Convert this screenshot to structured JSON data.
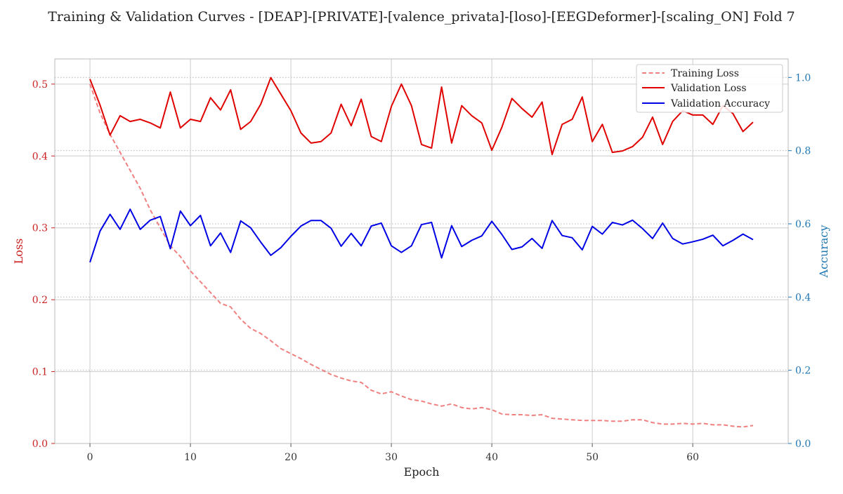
{
  "chart_data": {
    "type": "line",
    "title": "Training & Validation Curves - [DEAP]-[PRIVATE]-[valence_privata]-[loso]-[EEGDeformer]-[scaling_ON] Fold 7",
    "xlabel": "Epoch",
    "ylabel_left": "Loss",
    "ylabel_right": "Accuracy",
    "xlim": [
      -3.5,
      69.5
    ],
    "ylim_left": [
      0,
      0.535
    ],
    "ylim_right": [
      0,
      1.0505
    ],
    "xticks": [
      0,
      10,
      20,
      30,
      40,
      50,
      60
    ],
    "yticks_left": [
      0.0,
      0.1,
      0.2,
      0.3,
      0.4,
      0.5
    ],
    "yticks_right": [
      0.0,
      0.2,
      0.4,
      0.6,
      0.8,
      1.0
    ],
    "grid": true,
    "legend_position": "top-right",
    "colors": {
      "training_loss": "#f08080",
      "validation_loss": "#e00000",
      "validation_accuracy": "#0000e6",
      "left_axis": "#cc2222",
      "right_axis": "#1f77b4",
      "grid": "#cccccc"
    },
    "series": [
      {
        "name": "Training Loss",
        "axis": "left",
        "style": "dashed",
        "x": [
          0,
          1,
          2,
          3,
          4,
          5,
          6,
          7,
          8,
          9,
          10,
          11,
          12,
          13,
          14,
          15,
          16,
          17,
          18,
          19,
          20,
          21,
          22,
          23,
          24,
          25,
          26,
          27,
          28,
          29,
          30,
          31,
          32,
          33,
          34,
          35,
          36,
          37,
          38,
          39,
          40,
          41,
          42,
          43,
          44,
          45,
          46,
          47,
          48,
          49,
          50,
          51,
          52,
          53,
          54,
          55,
          56,
          57,
          58,
          59,
          60,
          61,
          62,
          63,
          64,
          65,
          66
        ],
        "values": [
          0.5,
          0.46,
          0.43,
          0.405,
          0.38,
          0.355,
          0.325,
          0.3,
          0.275,
          0.26,
          0.24,
          0.225,
          0.21,
          0.195,
          0.19,
          0.173,
          0.16,
          0.153,
          0.143,
          0.132,
          0.125,
          0.118,
          0.11,
          0.103,
          0.096,
          0.091,
          0.087,
          0.085,
          0.074,
          0.069,
          0.072,
          0.066,
          0.061,
          0.059,
          0.055,
          0.052,
          0.055,
          0.05,
          0.048,
          0.05,
          0.047,
          0.041,
          0.04,
          0.04,
          0.039,
          0.04,
          0.035,
          0.034,
          0.033,
          0.032,
          0.032,
          0.032,
          0.031,
          0.031,
          0.033,
          0.033,
          0.029,
          0.027,
          0.027,
          0.028,
          0.027,
          0.028,
          0.026,
          0.026,
          0.024,
          0.023,
          0.025
        ]
      },
      {
        "name": "Validation Loss",
        "axis": "left",
        "style": "solid",
        "x": [
          0,
          1,
          2,
          3,
          4,
          5,
          6,
          7,
          8,
          9,
          10,
          11,
          12,
          13,
          14,
          15,
          16,
          17,
          18,
          19,
          20,
          21,
          22,
          23,
          24,
          25,
          26,
          27,
          28,
          29,
          30,
          31,
          32,
          33,
          34,
          35,
          36,
          37,
          38,
          39,
          40,
          41,
          42,
          43,
          44,
          45,
          46,
          47,
          48,
          49,
          50,
          51,
          52,
          53,
          54,
          55,
          56,
          57,
          58,
          59,
          60,
          61,
          62,
          63,
          64,
          65,
          66
        ],
        "values": [
          0.507,
          0.471,
          0.429,
          0.456,
          0.448,
          0.451,
          0.446,
          0.439,
          0.489,
          0.439,
          0.451,
          0.448,
          0.481,
          0.464,
          0.492,
          0.437,
          0.448,
          0.472,
          0.509,
          0.486,
          0.463,
          0.432,
          0.418,
          0.42,
          0.432,
          0.472,
          0.442,
          0.479,
          0.427,
          0.42,
          0.469,
          0.5,
          0.47,
          0.416,
          0.411,
          0.496,
          0.418,
          0.47,
          0.456,
          0.446,
          0.408,
          0.44,
          0.48,
          0.466,
          0.454,
          0.475,
          0.402,
          0.444,
          0.451,
          0.482,
          0.42,
          0.444,
          0.405,
          0.407,
          0.413,
          0.426,
          0.454,
          0.416,
          0.448,
          0.463,
          0.457,
          0.457,
          0.444,
          0.47,
          0.459,
          0.434,
          0.447
        ]
      },
      {
        "name": "Validation Accuracy",
        "axis": "right",
        "style": "solid",
        "x": [
          0,
          1,
          2,
          3,
          4,
          5,
          6,
          7,
          8,
          9,
          10,
          11,
          12,
          13,
          14,
          15,
          16,
          17,
          18,
          19,
          20,
          21,
          22,
          23,
          24,
          25,
          26,
          27,
          28,
          29,
          30,
          31,
          32,
          33,
          34,
          35,
          36,
          37,
          38,
          39,
          40,
          41,
          42,
          43,
          44,
          45,
          46,
          47,
          48,
          49,
          50,
          51,
          52,
          53,
          54,
          55,
          56,
          57,
          58,
          59,
          60,
          61,
          62,
          63,
          64,
          65,
          66
        ],
        "values": [
          0.495,
          0.58,
          0.626,
          0.585,
          0.64,
          0.585,
          0.61,
          0.62,
          0.532,
          0.635,
          0.595,
          0.623,
          0.54,
          0.575,
          0.522,
          0.608,
          0.589,
          0.55,
          0.514,
          0.535,
          0.566,
          0.594,
          0.609,
          0.609,
          0.588,
          0.539,
          0.574,
          0.54,
          0.594,
          0.602,
          0.54,
          0.522,
          0.54,
          0.598,
          0.604,
          0.507,
          0.595,
          0.538,
          0.555,
          0.567,
          0.607,
          0.571,
          0.53,
          0.537,
          0.56,
          0.533,
          0.609,
          0.568,
          0.562,
          0.529,
          0.593,
          0.572,
          0.604,
          0.597,
          0.61,
          0.587,
          0.56,
          0.602,
          0.56,
          0.545,
          0.551,
          0.558,
          0.569,
          0.54,
          0.555,
          0.572,
          0.557
        ]
      }
    ]
  }
}
